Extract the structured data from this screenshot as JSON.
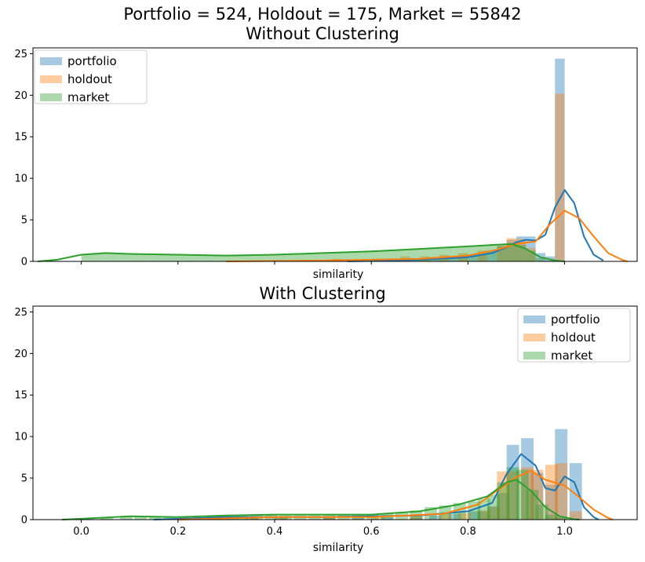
{
  "chart_data": [
    {
      "type": "histogram+kde",
      "title_line1": "Portfolio = 524, Holdout = 175, Market = 55842",
      "title": "Without Clustering",
      "xlabel": "similarity",
      "ylabel": "",
      "xlim": [
        -0.1,
        1.15
      ],
      "ylim": [
        0,
        25.7
      ],
      "yticks": [
        0,
        5,
        10,
        15,
        20,
        25
      ],
      "xticks": [
        0.0,
        0.2,
        0.4,
        0.6,
        0.8,
        1.0
      ],
      "show_xtick_labels": false,
      "legend_position": "upper left",
      "bin_width": 0.02,
      "series": [
        {
          "name": "portfolio",
          "color": "#1f77b4",
          "bars": [
            [
              0.66,
              0.2
            ],
            [
              0.68,
              0.3
            ],
            [
              0.7,
              0.35
            ],
            [
              0.72,
              0.4
            ],
            [
              0.74,
              0.5
            ],
            [
              0.76,
              0.6
            ],
            [
              0.78,
              0.7
            ],
            [
              0.8,
              0.8
            ],
            [
              0.82,
              1.0
            ],
            [
              0.84,
              1.3
            ],
            [
              0.86,
              1.8
            ],
            [
              0.88,
              2.6
            ],
            [
              0.9,
              3.0
            ],
            [
              0.92,
              3.0
            ],
            [
              0.94,
              1.0
            ],
            [
              0.96,
              0.6
            ],
            [
              0.98,
              24.4
            ]
          ],
          "kde": [
            [
              0.55,
              0
            ],
            [
              0.7,
              0.2
            ],
            [
              0.8,
              0.5
            ],
            [
              0.85,
              1.0
            ],
            [
              0.88,
              1.7
            ],
            [
              0.9,
              2.3
            ],
            [
              0.92,
              2.6
            ],
            [
              0.94,
              2.5
            ],
            [
              0.96,
              3.2
            ],
            [
              0.98,
              6.5
            ],
            [
              1.0,
              8.6
            ],
            [
              1.02,
              7.0
            ],
            [
              1.04,
              3.0
            ],
            [
              1.06,
              0.8
            ],
            [
              1.08,
              0.1
            ]
          ]
        },
        {
          "name": "holdout",
          "color": "#ff7f0e",
          "bars": [
            [
              0.52,
              0.3
            ],
            [
              0.6,
              0.3
            ],
            [
              0.66,
              0.6
            ],
            [
              0.7,
              0.6
            ],
            [
              0.74,
              0.8
            ],
            [
              0.78,
              1.0
            ],
            [
              0.82,
              1.3
            ],
            [
              0.86,
              1.9
            ],
            [
              0.88,
              2.8
            ],
            [
              0.9,
              2.7
            ],
            [
              0.92,
              1.6
            ],
            [
              0.98,
              20.2
            ]
          ],
          "kde": [
            [
              0.3,
              0
            ],
            [
              0.5,
              0.1
            ],
            [
              0.7,
              0.3
            ],
            [
              0.8,
              0.7
            ],
            [
              0.86,
              1.4
            ],
            [
              0.9,
              2.1
            ],
            [
              0.94,
              2.4
            ],
            [
              0.97,
              4.5
            ],
            [
              1.0,
              6.1
            ],
            [
              1.03,
              5.2
            ],
            [
              1.06,
              3.0
            ],
            [
              1.09,
              1.0
            ],
            [
              1.12,
              0.15
            ],
            [
              1.13,
              0
            ]
          ]
        },
        {
          "name": "market",
          "color": "#2ca02c",
          "bars": [
            [
              0.0,
              0.8
            ],
            [
              0.02,
              0.9
            ],
            [
              0.04,
              1.0
            ],
            [
              0.06,
              1.0
            ],
            [
              0.08,
              0.9
            ],
            [
              0.1,
              0.9
            ],
            [
              0.12,
              0.8
            ],
            [
              0.14,
              0.8
            ],
            [
              0.16,
              0.8
            ],
            [
              0.18,
              0.8
            ],
            [
              0.2,
              0.8
            ],
            [
              0.22,
              0.8
            ],
            [
              0.24,
              0.8
            ],
            [
              0.26,
              0.8
            ],
            [
              0.28,
              0.7
            ],
            [
              0.3,
              0.7
            ],
            [
              0.32,
              0.7
            ],
            [
              0.34,
              0.7
            ],
            [
              0.36,
              0.8
            ],
            [
              0.38,
              0.8
            ],
            [
              0.4,
              0.8
            ],
            [
              0.42,
              0.8
            ],
            [
              0.44,
              0.9
            ],
            [
              0.46,
              0.9
            ],
            [
              0.48,
              0.9
            ],
            [
              0.5,
              1.0
            ],
            [
              0.52,
              1.0
            ],
            [
              0.54,
              1.1
            ],
            [
              0.56,
              1.1
            ],
            [
              0.58,
              1.2
            ],
            [
              0.6,
              1.2
            ],
            [
              0.62,
              1.3
            ],
            [
              0.64,
              1.4
            ],
            [
              0.66,
              1.4
            ],
            [
              0.68,
              1.5
            ],
            [
              0.7,
              1.5
            ],
            [
              0.72,
              1.6
            ],
            [
              0.74,
              1.6
            ],
            [
              0.76,
              1.7
            ],
            [
              0.78,
              1.8
            ],
            [
              0.8,
              1.8
            ],
            [
              0.82,
              1.9
            ],
            [
              0.84,
              2.0
            ],
            [
              0.86,
              2.0
            ],
            [
              0.88,
              2.1
            ],
            [
              0.9,
              2.0
            ],
            [
              0.92,
              1.3
            ],
            [
              0.94,
              0.4
            ],
            [
              0.96,
              0.1
            ]
          ],
          "kde": [
            [
              -0.09,
              0
            ],
            [
              -0.05,
              0.2
            ],
            [
              0.0,
              0.8
            ],
            [
              0.05,
              1.0
            ],
            [
              0.1,
              0.9
            ],
            [
              0.2,
              0.8
            ],
            [
              0.3,
              0.7
            ],
            [
              0.4,
              0.8
            ],
            [
              0.5,
              1.0
            ],
            [
              0.6,
              1.2
            ],
            [
              0.7,
              1.5
            ],
            [
              0.8,
              1.8
            ],
            [
              0.86,
              2.0
            ],
            [
              0.89,
              2.1
            ],
            [
              0.92,
              1.5
            ],
            [
              0.95,
              0.5
            ],
            [
              0.98,
              0.1
            ],
            [
              1.0,
              0
            ]
          ]
        }
      ]
    },
    {
      "type": "histogram+kde",
      "title": "With Clustering",
      "xlabel": "similarity",
      "ylabel": "",
      "xlim": [
        -0.1,
        1.15
      ],
      "ylim": [
        0,
        25.7
      ],
      "yticks": [
        0,
        5,
        10,
        15,
        20,
        25
      ],
      "xticks": [
        0.0,
        0.2,
        0.4,
        0.6,
        0.8,
        1.0
      ],
      "xtick_labels": [
        "0.0",
        "0.2",
        "0.4",
        "0.6",
        "0.8",
        "1.0"
      ],
      "show_xtick_labels": true,
      "legend_position": "upper right",
      "bin_width": 0.0257,
      "series": [
        {
          "name": "portfolio",
          "color": "#1f77b4",
          "bars": [
            [
              0.24,
              0.1
            ],
            [
              0.3,
              0.3
            ],
            [
              0.34,
              0.3
            ],
            [
              0.4,
              0.2
            ],
            [
              0.5,
              0.2
            ],
            [
              0.56,
              0.2
            ],
            [
              0.62,
              0.3
            ],
            [
              0.68,
              0.3
            ],
            [
              0.72,
              0.5
            ],
            [
              0.76,
              0.7
            ],
            [
              0.8,
              1.0
            ],
            [
              0.82,
              1.0
            ],
            [
              0.84,
              1.6
            ],
            [
              0.86,
              3.2
            ],
            [
              0.88,
              9.0
            ],
            [
              0.91,
              9.8
            ],
            [
              0.93,
              5.6
            ],
            [
              0.96,
              4.2
            ],
            [
              0.98,
              10.9
            ],
            [
              1.01,
              6.8
            ]
          ],
          "kde": [
            [
              0.15,
              0
            ],
            [
              0.3,
              0.3
            ],
            [
              0.5,
              0.3
            ],
            [
              0.7,
              0.5
            ],
            [
              0.8,
              1.0
            ],
            [
              0.85,
              2.0
            ],
            [
              0.88,
              5.5
            ],
            [
              0.91,
              7.9
            ],
            [
              0.94,
              6.5
            ],
            [
              0.96,
              3.8
            ],
            [
              0.98,
              3.5
            ],
            [
              1.0,
              5.2
            ],
            [
              1.02,
              4.5
            ],
            [
              1.04,
              1.5
            ],
            [
              1.06,
              0.3
            ],
            [
              1.07,
              0
            ]
          ]
        },
        {
          "name": "holdout",
          "color": "#ff7f0e",
          "bars": [
            [
              0.34,
              0.3
            ],
            [
              0.4,
              0.3
            ],
            [
              0.5,
              0.3
            ],
            [
              0.6,
              0.3
            ],
            [
              0.68,
              0.5
            ],
            [
              0.74,
              0.7
            ],
            [
              0.78,
              0.8
            ],
            [
              0.82,
              1.1
            ],
            [
              0.84,
              1.5
            ],
            [
              0.86,
              5.8
            ],
            [
              0.88,
              5.8
            ],
            [
              0.91,
              6.3
            ],
            [
              0.93,
              6.0
            ],
            [
              0.96,
              6.6
            ],
            [
              0.98,
              6.8
            ],
            [
              1.01,
              1.0
            ]
          ],
          "kde": [
            [
              0.2,
              0
            ],
            [
              0.4,
              0.3
            ],
            [
              0.6,
              0.3
            ],
            [
              0.75,
              0.7
            ],
            [
              0.82,
              1.8
            ],
            [
              0.86,
              3.5
            ],
            [
              0.9,
              5.1
            ],
            [
              0.93,
              5.9
            ],
            [
              0.96,
              4.8
            ],
            [
              1.0,
              4.1
            ],
            [
              1.03,
              2.7
            ],
            [
              1.06,
              1.2
            ],
            [
              1.09,
              0.2
            ],
            [
              1.1,
              0
            ]
          ]
        },
        {
          "name": "market",
          "color": "#2ca02c",
          "bars": [
            [
              -0.04,
              0.1
            ],
            [
              0.0,
              0.1
            ],
            [
              0.04,
              0.2
            ],
            [
              0.08,
              0.4
            ],
            [
              0.11,
              0.3
            ],
            [
              0.14,
              0.3
            ],
            [
              0.17,
              0.3
            ],
            [
              0.2,
              0.3
            ],
            [
              0.23,
              0.3
            ],
            [
              0.26,
              0.4
            ],
            [
              0.29,
              0.5
            ],
            [
              0.32,
              0.6
            ],
            [
              0.35,
              0.6
            ],
            [
              0.38,
              0.6
            ],
            [
              0.41,
              0.5
            ],
            [
              0.44,
              0.5
            ],
            [
              0.47,
              0.5
            ],
            [
              0.5,
              0.6
            ],
            [
              0.53,
              0.6
            ],
            [
              0.56,
              0.6
            ],
            [
              0.59,
              0.6
            ],
            [
              0.62,
              0.7
            ],
            [
              0.65,
              0.8
            ],
            [
              0.68,
              1.1
            ],
            [
              0.71,
              1.5
            ],
            [
              0.74,
              1.7
            ],
            [
              0.77,
              2.0
            ],
            [
              0.8,
              2.2
            ],
            [
              0.82,
              2.5
            ],
            [
              0.84,
              3.0
            ],
            [
              0.86,
              4.5
            ],
            [
              0.88,
              6.3
            ],
            [
              0.9,
              6.0
            ],
            [
              0.92,
              3.6
            ],
            [
              0.94,
              1.8
            ],
            [
              0.96,
              0.6
            ],
            [
              0.98,
              0.3
            ]
          ],
          "kde": [
            [
              -0.04,
              0
            ],
            [
              0.0,
              0.1
            ],
            [
              0.1,
              0.4
            ],
            [
              0.2,
              0.3
            ],
            [
              0.3,
              0.5
            ],
            [
              0.4,
              0.6
            ],
            [
              0.5,
              0.6
            ],
            [
              0.6,
              0.6
            ],
            [
              0.7,
              1.0
            ],
            [
              0.78,
              1.8
            ],
            [
              0.84,
              2.8
            ],
            [
              0.88,
              4.5
            ],
            [
              0.9,
              4.8
            ],
            [
              0.93,
              3.5
            ],
            [
              0.96,
              1.5
            ],
            [
              0.99,
              0.4
            ],
            [
              1.02,
              0.05
            ],
            [
              1.03,
              0
            ]
          ]
        }
      ]
    }
  ]
}
